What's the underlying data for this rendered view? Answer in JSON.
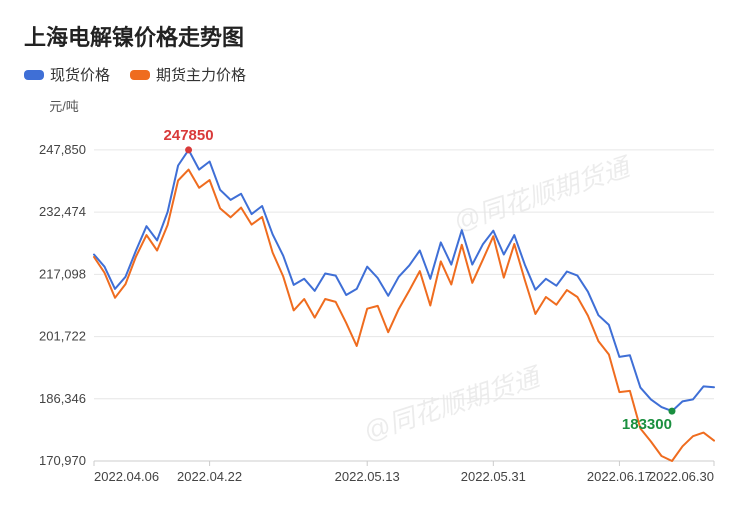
{
  "chart": {
    "type": "line",
    "title": "上海电解镍价格走势图",
    "yaxis": {
      "unit_label": "元/吨",
      "min": 170970,
      "max": 255000,
      "ticks": [
        170970,
        186346,
        201722,
        217098,
        232474,
        247850
      ],
      "tick_labels": [
        "170,970",
        "186,346",
        "201,722",
        "217,098",
        "232,474",
        "247,850"
      ]
    },
    "xaxis": {
      "count": 60,
      "tick_indices": [
        0,
        11,
        26,
        38,
        50,
        59
      ],
      "tick_labels": [
        "2022.04.06",
        "2022.04.22",
        "2022.05.13",
        "2022.05.31",
        "2022.06.17",
        "2022.06.30"
      ]
    },
    "legend": [
      {
        "label": "现货价格",
        "color": "#3f6fd6"
      },
      {
        "label": "期货主力价格",
        "color": "#ef6c1f"
      }
    ],
    "series": [
      {
        "name": "现货价格",
        "color": "#3f6fd6",
        "values": [
          222000,
          219000,
          213500,
          216500,
          223000,
          229000,
          225500,
          232500,
          244000,
          247850,
          243000,
          245000,
          238000,
          235500,
          237000,
          232000,
          234000,
          227000,
          221700,
          214500,
          216000,
          213000,
          217300,
          216800,
          212000,
          213500,
          219000,
          216200,
          211800,
          216500,
          219300,
          223000,
          216000,
          225000,
          219500,
          228000,
          219500,
          224500,
          227900,
          222000,
          226800,
          219500,
          213300,
          216000,
          214300,
          217800,
          216800,
          212800,
          207000,
          204600,
          196700,
          197100,
          189100,
          186200,
          184300,
          183300,
          185700,
          186200,
          189400,
          189200
        ]
      },
      {
        "name": "期货主力价格",
        "color": "#ef6c1f",
        "values": [
          221400,
          217500,
          211300,
          214700,
          221500,
          226800,
          223000,
          229300,
          240300,
          243000,
          238500,
          240400,
          233400,
          231200,
          233600,
          229400,
          231300,
          222500,
          216600,
          208200,
          211000,
          206400,
          211000,
          210300,
          205100,
          199400,
          208600,
          209300,
          202800,
          208500,
          213100,
          217900,
          209400,
          220300,
          214600,
          224400,
          215000,
          220700,
          226500,
          216300,
          224600,
          215700,
          207300,
          211500,
          209600,
          213200,
          211500,
          206900,
          200600,
          197300,
          188000,
          188300,
          179000,
          175800,
          172200,
          170970,
          174600,
          177100,
          178000,
          176000
        ]
      }
    ],
    "annotations": {
      "high": {
        "label": "247850",
        "series": 0,
        "index": 9,
        "color": "#d93a3a"
      },
      "low": {
        "label": "183300",
        "series": 0,
        "index": 55,
        "color": "#1a8f3f"
      }
    },
    "watermark": "@同花顺期货通",
    "styling": {
      "background_color": "#ffffff",
      "grid_color": "#e6e6e6",
      "axis_color": "#cccccc",
      "title_fontsize": 22,
      "label_fontsize": 13,
      "line_width": 2,
      "peak_marker_radius": 3.5
    }
  }
}
